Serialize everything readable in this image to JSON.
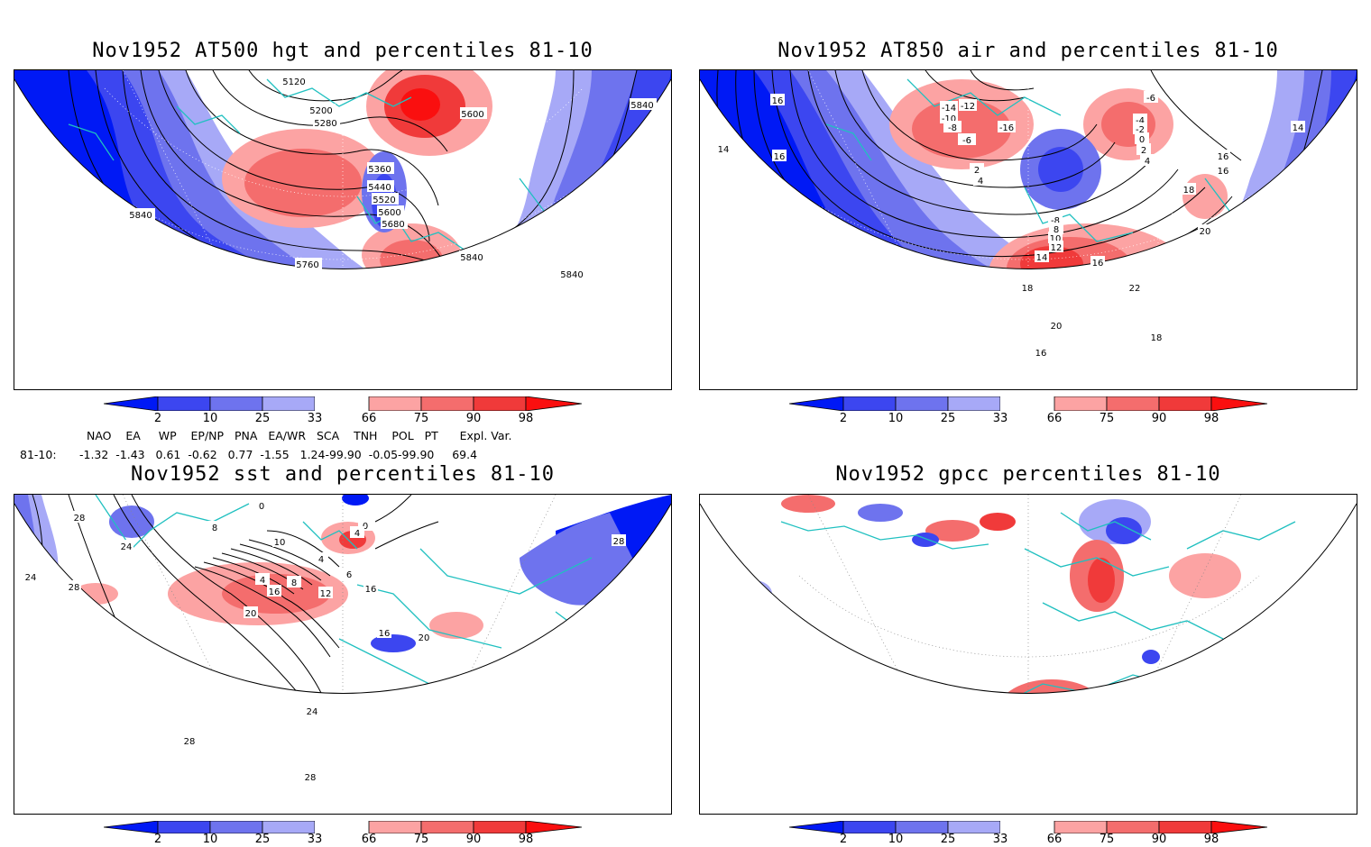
{
  "panels": [
    {
      "id": "hgt500",
      "title": "Nov1952 AT500 hgt and percentiles 81-10",
      "contour_labels": [
        "5120",
        "5200",
        "5280",
        "5360",
        "5440",
        "5520",
        "5600",
        "5680",
        "5760",
        "5840",
        "5840",
        "5840",
        "5840",
        "5600"
      ]
    },
    {
      "id": "air850",
      "title": "Nov1952 AT850 air and percentiles 81-10",
      "contour_labels": [
        "14",
        "16",
        "16",
        "-14",
        "-10",
        "-8",
        "-6",
        "-12",
        "-16",
        "-4",
        "2",
        "4",
        "-2",
        "0",
        "2",
        "4",
        "16",
        "16",
        "18",
        "20",
        "10",
        "12",
        "14",
        "16",
        "18",
        "22",
        "20",
        "18",
        "16",
        "14",
        "-8",
        "8",
        "-6"
      ]
    },
    {
      "id": "sst",
      "title": "Nov1952 sst and percentiles 81-10",
      "contour_labels": [
        "28",
        "24",
        "28",
        "24",
        "16",
        "20",
        "4",
        "8",
        "12",
        "10",
        "6",
        "0",
        "4",
        "0",
        "4",
        "16",
        "20",
        "16",
        "24",
        "28",
        "28",
        "28",
        "8"
      ]
    },
    {
      "id": "gpcc",
      "title": "Nov1952 gpcc percentiles 81-10",
      "contour_labels": []
    }
  ],
  "colorbar": {
    "labels": [
      "2",
      "10",
      "25",
      "33",
      "66",
      "75",
      "90",
      "98"
    ],
    "colors": {
      "b1": "#0019f5",
      "b2": "#3c46f0",
      "b3": "#6e73ee",
      "b4": "#a7a9f7",
      "r1": "#fca3a3",
      "r2": "#f46d6d",
      "r3": "#f03a3a",
      "r4": "#fa0f0f"
    }
  },
  "indices": {
    "header": "NAO    EA     WP    EP/NP   PNA   EA/WR   SCA    TNH    POL   PT      Expl. Var.",
    "row_label": "81-10:",
    "values": "-1.32  -1.43   0.61  -0.62   0.77  -1.55   1.24-99.90  -0.05-99.90     69.4"
  },
  "colors": {
    "coast": "#20c0c0",
    "contour": "#000000"
  }
}
